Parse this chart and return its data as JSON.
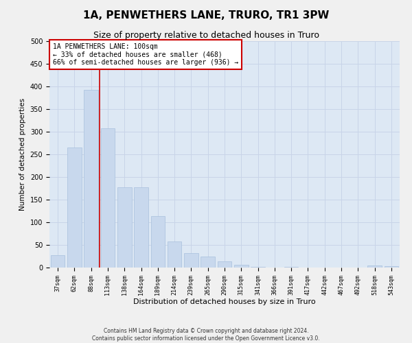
{
  "title": "1A, PENWETHERS LANE, TRURO, TR1 3PW",
  "subtitle": "Size of property relative to detached houses in Truro",
  "xlabel": "Distribution of detached houses by size in Truro",
  "ylabel": "Number of detached properties",
  "footer_line1": "Contains HM Land Registry data © Crown copyright and database right 2024.",
  "footer_line2": "Contains public sector information licensed under the Open Government Licence v3.0.",
  "categories": [
    "37sqm",
    "62sqm",
    "88sqm",
    "113sqm",
    "138sqm",
    "164sqm",
    "189sqm",
    "214sqm",
    "239sqm",
    "265sqm",
    "290sqm",
    "315sqm",
    "341sqm",
    "366sqm",
    "391sqm",
    "417sqm",
    "442sqm",
    "467sqm",
    "492sqm",
    "518sqm",
    "543sqm"
  ],
  "values": [
    27,
    265,
    393,
    308,
    178,
    178,
    113,
    57,
    32,
    25,
    13,
    6,
    2,
    0,
    1,
    0,
    0,
    0,
    0,
    5,
    3
  ],
  "bar_color": "#c8d8ed",
  "bar_edge_color": "#a8c0dc",
  "property_line_x": 2.5,
  "annotation_box_text": "1A PENWETHERS LANE: 100sqm\n← 33% of detached houses are smaller (468)\n66% of semi-detached houses are larger (936) →",
  "annotation_box_color": "#cc0000",
  "annotation_box_bg": "#ffffff",
  "property_line_color": "#cc0000",
  "ylim": [
    0,
    500
  ],
  "yticks": [
    0,
    50,
    100,
    150,
    200,
    250,
    300,
    350,
    400,
    450,
    500
  ],
  "grid_color": "#c8d4e8",
  "plot_bg_color": "#dde8f4",
  "fig_bg_color": "#f0f0f0",
  "title_fontsize": 11,
  "subtitle_fontsize": 9
}
